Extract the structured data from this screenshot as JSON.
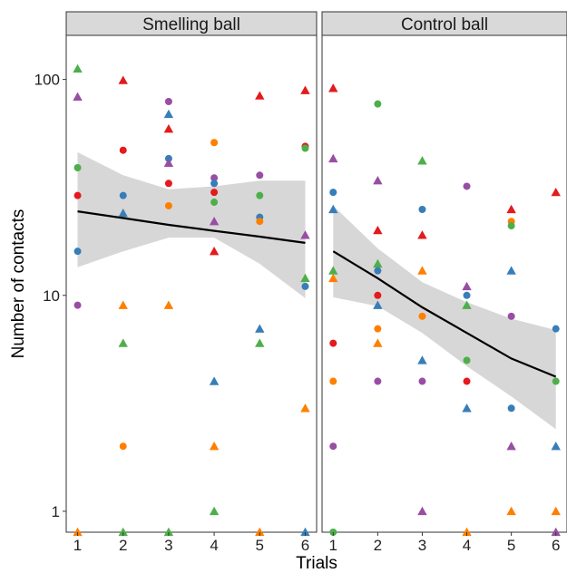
{
  "chart_data": {
    "type": "scatter",
    "y_scale": "log",
    "xlabel": "Trials",
    "ylabel": "Number of contacts",
    "x_ticks": [
      "1",
      "2",
      "3",
      "4",
      "5",
      "6"
    ],
    "y_ticks": [
      "1",
      "10",
      "100"
    ],
    "xlim": [
      0.75,
      6.25
    ],
    "ylim": [
      0.8,
      160
    ],
    "grid": false,
    "colors": {
      "red": "#e41a1c",
      "blue": "#377eb8",
      "green": "#4daf4a",
      "purple": "#984ea3",
      "orange": "#ff7f00"
    },
    "panels": [
      {
        "title": "Smelling ball",
        "fit": {
          "x": [
            1,
            2,
            3,
            4,
            5,
            6
          ],
          "y": [
            24.5,
            22.8,
            21.2,
            19.9,
            18.7,
            17.5
          ],
          "lower": [
            13.5,
            16,
            18.5,
            18.5,
            14,
            9.7
          ],
          "upper": [
            46,
            36,
            31,
            32,
            34,
            34
          ]
        },
        "points": [
          {
            "x": 1,
            "y": 112,
            "color": "green",
            "shape": "triangle"
          },
          {
            "x": 1,
            "y": 83,
            "color": "purple",
            "shape": "triangle"
          },
          {
            "x": 1,
            "y": 39,
            "color": "green",
            "shape": "circle"
          },
          {
            "x": 1,
            "y": 29,
            "color": "red",
            "shape": "circle"
          },
          {
            "x": 1,
            "y": 16,
            "color": "blue",
            "shape": "circle"
          },
          {
            "x": 1,
            "y": 9,
            "color": "purple",
            "shape": "circle"
          },
          {
            "x": 1,
            "y": 0.8,
            "color": "orange",
            "shape": "triangle"
          },
          {
            "x": 2,
            "y": 99,
            "color": "red",
            "shape": "triangle"
          },
          {
            "x": 2,
            "y": 47,
            "color": "red",
            "shape": "circle"
          },
          {
            "x": 2,
            "y": 29,
            "color": "blue",
            "shape": "circle"
          },
          {
            "x": 2,
            "y": 24,
            "color": "blue",
            "shape": "triangle"
          },
          {
            "x": 2,
            "y": 9,
            "color": "orange",
            "shape": "triangle"
          },
          {
            "x": 2,
            "y": 6,
            "color": "green",
            "shape": "triangle"
          },
          {
            "x": 2,
            "y": 2,
            "color": "orange",
            "shape": "circle"
          },
          {
            "x": 2,
            "y": 0.8,
            "color": "green",
            "shape": "triangle"
          },
          {
            "x": 3,
            "y": 79,
            "color": "purple",
            "shape": "circle"
          },
          {
            "x": 3,
            "y": 69,
            "color": "blue",
            "shape": "triangle"
          },
          {
            "x": 3,
            "y": 59,
            "color": "red",
            "shape": "triangle"
          },
          {
            "x": 3,
            "y": 43,
            "color": "blue",
            "shape": "circle"
          },
          {
            "x": 3,
            "y": 41,
            "color": "purple",
            "shape": "triangle"
          },
          {
            "x": 3,
            "y": 33,
            "color": "red",
            "shape": "circle"
          },
          {
            "x": 3,
            "y": 26,
            "color": "orange",
            "shape": "circle"
          },
          {
            "x": 3,
            "y": 9,
            "color": "orange",
            "shape": "triangle"
          },
          {
            "x": 3,
            "y": 0.8,
            "color": "green",
            "shape": "triangle"
          },
          {
            "x": 4,
            "y": 51,
            "color": "orange",
            "shape": "circle"
          },
          {
            "x": 4,
            "y": 35,
            "color": "purple",
            "shape": "circle"
          },
          {
            "x": 4,
            "y": 33,
            "color": "blue",
            "shape": "circle"
          },
          {
            "x": 4,
            "y": 30,
            "color": "red",
            "shape": "circle"
          },
          {
            "x": 4,
            "y": 27,
            "color": "green",
            "shape": "circle"
          },
          {
            "x": 4,
            "y": 22,
            "color": "purple",
            "shape": "triangle"
          },
          {
            "x": 4,
            "y": 16,
            "color": "red",
            "shape": "triangle"
          },
          {
            "x": 4,
            "y": 4,
            "color": "blue",
            "shape": "triangle"
          },
          {
            "x": 4,
            "y": 2,
            "color": "orange",
            "shape": "triangle"
          },
          {
            "x": 4,
            "y": 1,
            "color": "green",
            "shape": "triangle"
          },
          {
            "x": 5,
            "y": 84,
            "color": "red",
            "shape": "triangle"
          },
          {
            "x": 5,
            "y": 36,
            "color": "purple",
            "shape": "circle"
          },
          {
            "x": 5,
            "y": 29,
            "color": "green",
            "shape": "circle"
          },
          {
            "x": 5,
            "y": 23,
            "color": "blue",
            "shape": "circle"
          },
          {
            "x": 5,
            "y": 22,
            "color": "orange",
            "shape": "circle"
          },
          {
            "x": 5,
            "y": 7,
            "color": "blue",
            "shape": "triangle"
          },
          {
            "x": 5,
            "y": 6,
            "color": "green",
            "shape": "triangle"
          },
          {
            "x": 5,
            "y": 0.8,
            "color": "orange",
            "shape": "triangle"
          },
          {
            "x": 6,
            "y": 89,
            "color": "red",
            "shape": "triangle"
          },
          {
            "x": 6,
            "y": 49,
            "color": "red",
            "shape": "circle"
          },
          {
            "x": 6,
            "y": 48,
            "color": "green",
            "shape": "circle"
          },
          {
            "x": 6,
            "y": 19,
            "color": "purple",
            "shape": "triangle"
          },
          {
            "x": 6,
            "y": 12,
            "color": "green",
            "shape": "triangle"
          },
          {
            "x": 6,
            "y": 11,
            "color": "blue",
            "shape": "circle"
          },
          {
            "x": 6,
            "y": 3,
            "color": "orange",
            "shape": "triangle"
          },
          {
            "x": 6,
            "y": 0.8,
            "color": "blue",
            "shape": "triangle"
          }
        ]
      },
      {
        "title": "Control ball",
        "fit": {
          "x": [
            1,
            2,
            3,
            4,
            5,
            6
          ],
          "y": [
            16,
            12,
            8.8,
            6.7,
            5.1,
            4.2
          ],
          "lower": [
            9.8,
            8.9,
            6.7,
            4.7,
            3.4,
            2.4
          ],
          "upper": [
            26,
            16.5,
            11.5,
            9.3,
            7.8,
            6.9
          ]
        },
        "points": [
          {
            "x": 1,
            "y": 91,
            "color": "red",
            "shape": "triangle"
          },
          {
            "x": 1,
            "y": 43,
            "color": "purple",
            "shape": "triangle"
          },
          {
            "x": 1,
            "y": 30,
            "color": "blue",
            "shape": "circle"
          },
          {
            "x": 1,
            "y": 25,
            "color": "blue",
            "shape": "triangle"
          },
          {
            "x": 1,
            "y": 13,
            "color": "green",
            "shape": "triangle"
          },
          {
            "x": 1,
            "y": 12,
            "color": "orange",
            "shape": "triangle"
          },
          {
            "x": 1,
            "y": 6,
            "color": "red",
            "shape": "circle"
          },
          {
            "x": 1,
            "y": 4,
            "color": "orange",
            "shape": "circle"
          },
          {
            "x": 1,
            "y": 2,
            "color": "purple",
            "shape": "circle"
          },
          {
            "x": 1,
            "y": 0.8,
            "color": "green",
            "shape": "circle"
          },
          {
            "x": 2,
            "y": 77,
            "color": "green",
            "shape": "circle"
          },
          {
            "x": 2,
            "y": 34,
            "color": "purple",
            "shape": "triangle"
          },
          {
            "x": 2,
            "y": 20,
            "color": "red",
            "shape": "triangle"
          },
          {
            "x": 2,
            "y": 14,
            "color": "green",
            "shape": "triangle"
          },
          {
            "x": 2,
            "y": 13,
            "color": "blue",
            "shape": "circle"
          },
          {
            "x": 2,
            "y": 10,
            "color": "red",
            "shape": "circle"
          },
          {
            "x": 2,
            "y": 9,
            "color": "blue",
            "shape": "triangle"
          },
          {
            "x": 2,
            "y": 7,
            "color": "orange",
            "shape": "circle"
          },
          {
            "x": 2,
            "y": 6,
            "color": "orange",
            "shape": "triangle"
          },
          {
            "x": 2,
            "y": 4,
            "color": "purple",
            "shape": "circle"
          },
          {
            "x": 3,
            "y": 42,
            "color": "green",
            "shape": "triangle"
          },
          {
            "x": 3,
            "y": 25,
            "color": "blue",
            "shape": "circle"
          },
          {
            "x": 3,
            "y": 19,
            "color": "red",
            "shape": "triangle"
          },
          {
            "x": 3,
            "y": 13,
            "color": "orange",
            "shape": "triangle"
          },
          {
            "x": 3,
            "y": 8,
            "color": "orange",
            "shape": "circle"
          },
          {
            "x": 3,
            "y": 5,
            "color": "blue",
            "shape": "triangle"
          },
          {
            "x": 3,
            "y": 4,
            "color": "purple",
            "shape": "circle"
          },
          {
            "x": 3,
            "y": 1,
            "color": "purple",
            "shape": "triangle"
          },
          {
            "x": 4,
            "y": 32,
            "color": "purple",
            "shape": "circle"
          },
          {
            "x": 4,
            "y": 11,
            "color": "purple",
            "shape": "triangle"
          },
          {
            "x": 4,
            "y": 10,
            "color": "blue",
            "shape": "circle"
          },
          {
            "x": 4,
            "y": 9,
            "color": "green",
            "shape": "triangle"
          },
          {
            "x": 4,
            "y": 5,
            "color": "green",
            "shape": "circle"
          },
          {
            "x": 4,
            "y": 4,
            "color": "red",
            "shape": "circle"
          },
          {
            "x": 4,
            "y": 3,
            "color": "blue",
            "shape": "triangle"
          },
          {
            "x": 4,
            "y": 0.8,
            "color": "orange",
            "shape": "triangle"
          },
          {
            "x": 5,
            "y": 25,
            "color": "red",
            "shape": "triangle"
          },
          {
            "x": 5,
            "y": 22,
            "color": "orange",
            "shape": "circle"
          },
          {
            "x": 5,
            "y": 21,
            "color": "green",
            "shape": "circle"
          },
          {
            "x": 5,
            "y": 13,
            "color": "blue",
            "shape": "triangle"
          },
          {
            "x": 5,
            "y": 8,
            "color": "purple",
            "shape": "circle"
          },
          {
            "x": 5,
            "y": 3,
            "color": "blue",
            "shape": "circle"
          },
          {
            "x": 5,
            "y": 2,
            "color": "purple",
            "shape": "triangle"
          },
          {
            "x": 5,
            "y": 1,
            "color": "orange",
            "shape": "triangle"
          },
          {
            "x": 6,
            "y": 30,
            "color": "red",
            "shape": "triangle"
          },
          {
            "x": 6,
            "y": 7,
            "color": "blue",
            "shape": "circle"
          },
          {
            "x": 6,
            "y": 4,
            "color": "green",
            "shape": "circle"
          },
          {
            "x": 6,
            "y": 2,
            "color": "blue",
            "shape": "triangle"
          },
          {
            "x": 6,
            "y": 1,
            "color": "orange",
            "shape": "triangle"
          },
          {
            "x": 6,
            "y": 0.8,
            "color": "purple",
            "shape": "triangle"
          }
        ]
      }
    ]
  }
}
